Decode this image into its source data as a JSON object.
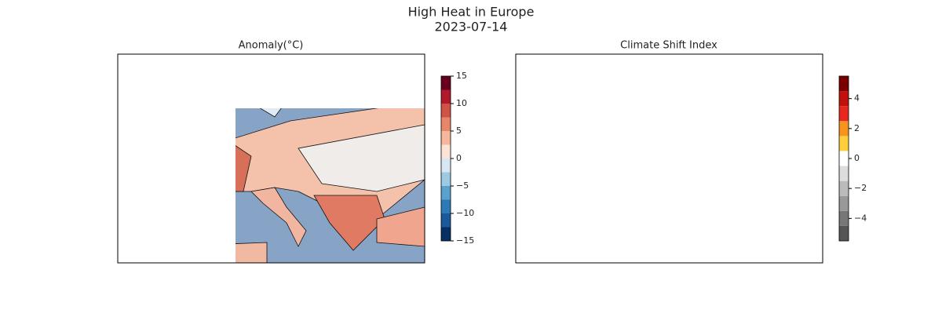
{
  "title": "High Heat in Europe",
  "subtitle": "2023-07-14",
  "panels": [
    {
      "title": "Anomaly(°C)",
      "colorbar": {
        "lim": [
          -15,
          15
        ],
        "ticks": [
          {
            "value": -15,
            "label": "−15"
          },
          {
            "value": -10,
            "label": "−10"
          },
          {
            "value": -5,
            "label": "−5"
          },
          0,
          5,
          10,
          15
        ],
        "bounds": [
          -15,
          -12.5,
          -10,
          -7.5,
          -5,
          -2.5,
          0,
          2.5,
          5,
          7.5,
          10,
          12.5,
          15
        ],
        "colors": [
          "#053061",
          "#1a5a9c",
          "#2c7bb6",
          "#5aa1cf",
          "#9ecae1",
          "#d8e8f2",
          "#fbe3d6",
          "#f6b89c",
          "#e8866a",
          "#cf5246",
          "#b2182b",
          "#67001f"
        ]
      }
    },
    {
      "title": "Climate Shift Index",
      "colorbar": {
        "lim": [
          -5.5,
          5.5
        ],
        "ticks": [
          {
            "value": -4,
            "label": "−4"
          },
          {
            "value": -2,
            "label": "−2"
          },
          0,
          2,
          4
        ],
        "bounds": [
          -5.5,
          -4.5,
          -3.5,
          -2.5,
          -1.5,
          -0.5,
          0.5,
          1.5,
          2.5,
          3.5,
          4.5,
          5.5
        ],
        "colors": [
          "#555555",
          "#777777",
          "#999999",
          "#bbbbbb",
          "#dddddd",
          "#ffffff",
          "#fdd03b",
          "#f7941d",
          "#e8281e",
          "#c0110d",
          "#7a0000"
        ]
      }
    }
  ]
}
